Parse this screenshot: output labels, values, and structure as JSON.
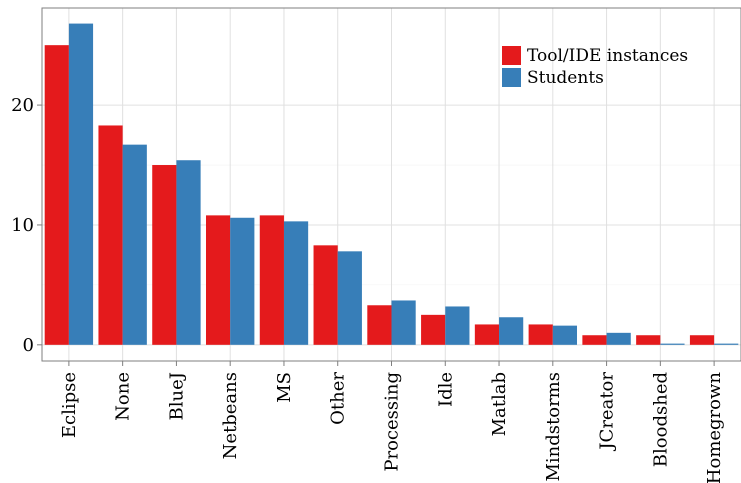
{
  "chart_data": {
    "type": "bar",
    "categories": [
      "Eclipse",
      "None",
      "BlueJ",
      "Netbeans",
      "MS",
      "Other",
      "Processing",
      "Idle",
      "Matlab",
      "Mindstorms",
      "JCreator",
      "Bloodshed",
      "Homegrown"
    ],
    "series": [
      {
        "name": "Tool/IDE instances",
        "color": "#e41a1c",
        "values": [
          25.0,
          18.3,
          15.0,
          10.8,
          10.8,
          8.3,
          3.3,
          2.5,
          1.7,
          1.7,
          0.8,
          0.8,
          0.8
        ]
      },
      {
        "name": "Students",
        "color": "#377eb8",
        "values": [
          26.8,
          16.7,
          15.4,
          10.6,
          10.3,
          7.8,
          3.7,
          3.2,
          2.3,
          1.6,
          1.0,
          0.1,
          0.1
        ]
      }
    ],
    "yticks": [
      0,
      10,
      20
    ],
    "ylim": [
      -1.35,
      28.1
    ],
    "grid": true,
    "legend_position": "top-right",
    "title": "",
    "xlabel": "",
    "ylabel": ""
  }
}
